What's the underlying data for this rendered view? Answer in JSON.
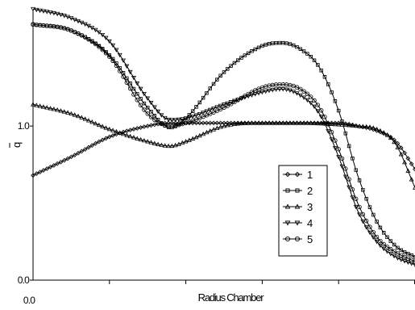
{
  "chart_data": {
    "type": "line",
    "title": "",
    "xlabel": "Radius Chamber",
    "ylabel": "q",
    "xlim": [
      0,
      1
    ],
    "ylim": [
      0,
      1.75
    ],
    "x_tick_labels": [
      {
        "value": 0,
        "label": "0.0"
      }
    ],
    "x_ticks_unlabeled": [
      0.2,
      0.4,
      0.6,
      0.8,
      1.0
    ],
    "y_tick_labels": [
      {
        "value": 0,
        "label": "0.0"
      },
      {
        "value": 1.0,
        "label": "1.0"
      }
    ],
    "grid": false,
    "legend_position": "bottom-right",
    "series": [
      {
        "name": "1",
        "marker": "diamond",
        "x": [
          0,
          0.1,
          0.2,
          0.3,
          0.36,
          0.4,
          0.5,
          0.6,
          0.7,
          0.8,
          0.85,
          0.9,
          0.95,
          1.0
        ],
        "y": [
          0.68,
          0.8,
          0.93,
          1.0,
          1.02,
          1.02,
          1.02,
          1.02,
          1.02,
          1.02,
          1.0,
          0.97,
          0.9,
          0.72
        ]
      },
      {
        "name": "2",
        "marker": "square",
        "x": [
          0,
          0.1,
          0.2,
          0.3,
          0.36,
          0.4,
          0.5,
          0.6,
          0.65,
          0.7,
          0.75,
          0.8,
          0.85,
          0.9,
          0.95,
          1.0
        ],
        "y": [
          1.66,
          1.62,
          1.46,
          1.12,
          0.99,
          1.05,
          1.35,
          1.52,
          1.54,
          1.5,
          1.38,
          1.1,
          0.68,
          0.38,
          0.22,
          0.15
        ]
      },
      {
        "name": "3",
        "marker": "triangle-up",
        "x": [
          0,
          0.1,
          0.2,
          0.3,
          0.36,
          0.4,
          0.5,
          0.6,
          0.7,
          0.8,
          0.85,
          0.9,
          0.95,
          1.0
        ],
        "y": [
          1.14,
          1.08,
          0.98,
          0.9,
          0.87,
          0.9,
          1.0,
          1.02,
          1.02,
          1.01,
          1.0,
          0.98,
          0.88,
          0.6
        ]
      },
      {
        "name": "4",
        "marker": "triangle-down",
        "x": [
          0,
          0.1,
          0.2,
          0.3,
          0.36,
          0.4,
          0.5,
          0.6,
          0.65,
          0.7,
          0.75,
          0.8,
          0.85,
          0.9,
          0.95,
          1.0
        ],
        "y": [
          1.76,
          1.7,
          1.55,
          1.18,
          1.04,
          1.05,
          1.14,
          1.22,
          1.24,
          1.2,
          1.08,
          0.8,
          0.45,
          0.25,
          0.15,
          0.1
        ]
      },
      {
        "name": "5",
        "marker": "circle",
        "x": [
          0,
          0.1,
          0.2,
          0.3,
          0.36,
          0.4,
          0.5,
          0.6,
          0.65,
          0.7,
          0.75,
          0.8,
          0.85,
          0.9,
          0.95,
          1.0
        ],
        "y": [
          1.66,
          1.62,
          1.45,
          1.08,
          1.0,
          1.02,
          1.12,
          1.25,
          1.27,
          1.24,
          1.12,
          0.85,
          0.5,
          0.28,
          0.18,
          0.12
        ]
      }
    ]
  }
}
